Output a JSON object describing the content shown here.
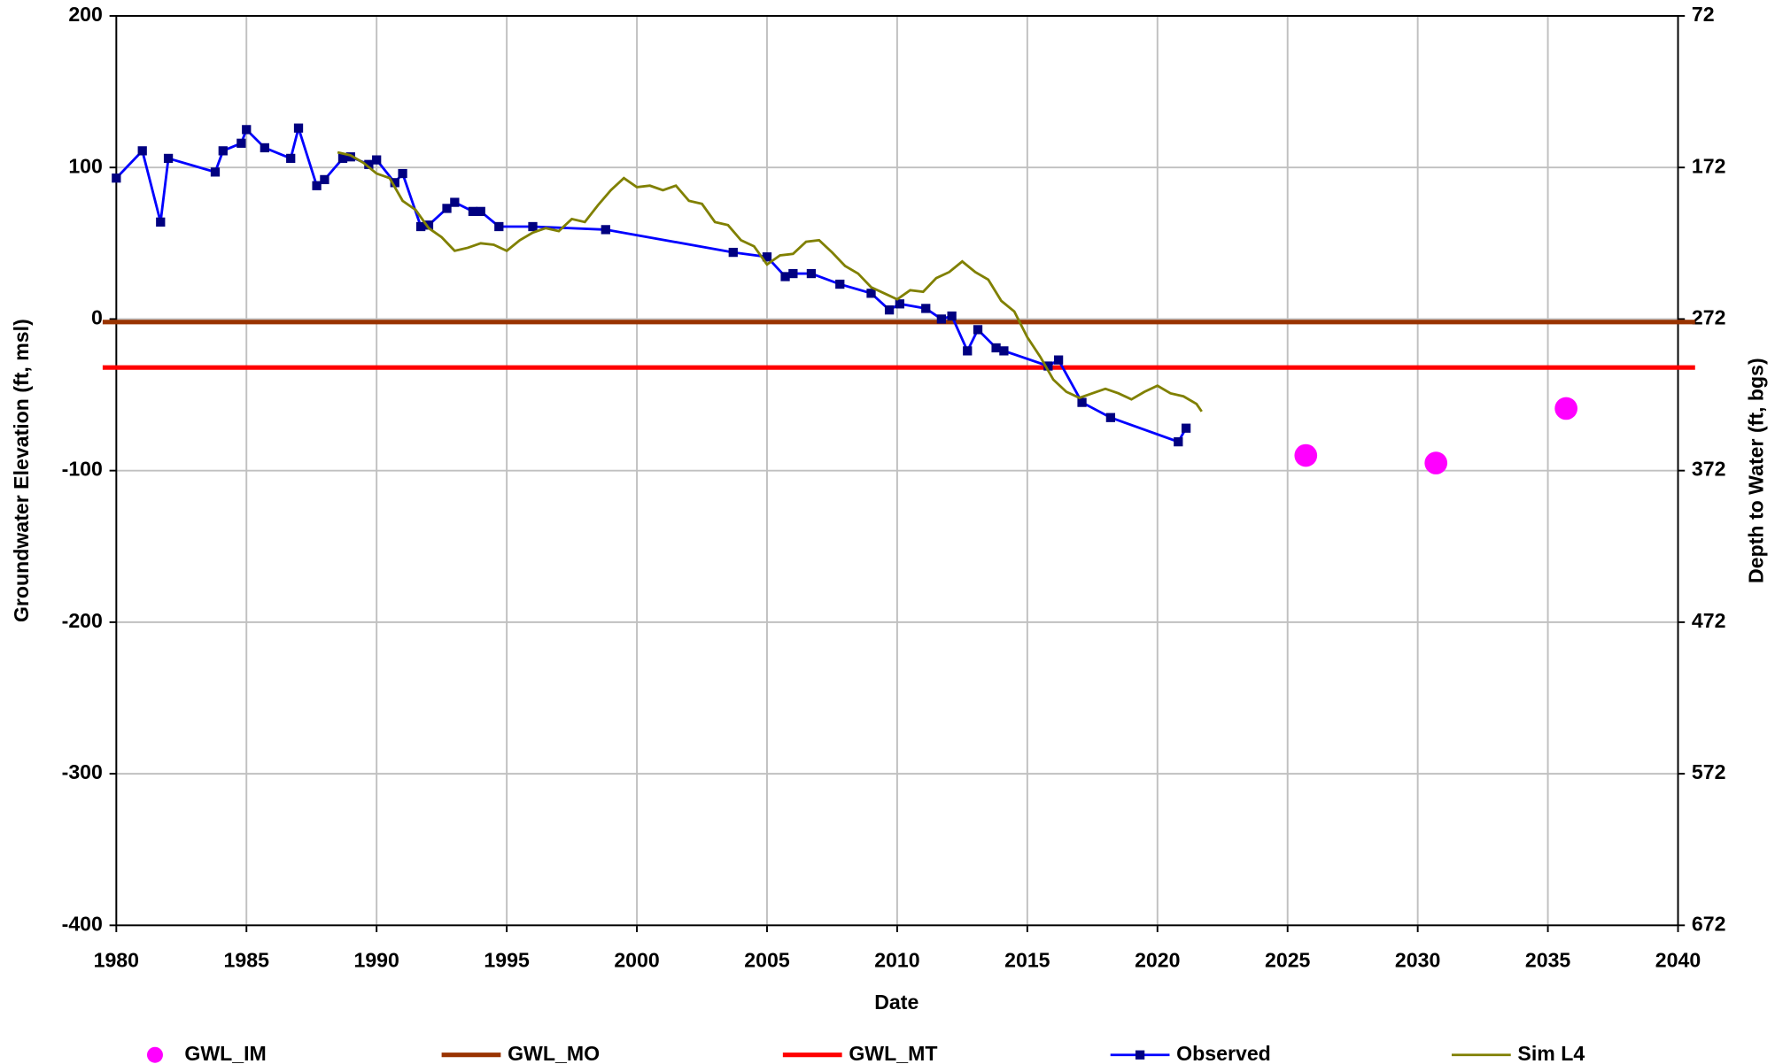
{
  "chart_data": {
    "type": "line",
    "xlabel": "Date",
    "ylabel": "Groundwater Elevation (ft, msl)",
    "y2label": "Depth to Water (ft, bgs)",
    "xlim": [
      1980,
      2040
    ],
    "xticks": [
      1980,
      1985,
      1990,
      1995,
      2000,
      2005,
      2010,
      2015,
      2020,
      2025,
      2030,
      2035,
      2040
    ],
    "ylim": [
      -400,
      200
    ],
    "yticks": [
      -400,
      -300,
      -200,
      -100,
      0,
      100,
      200
    ],
    "y2lim": [
      672,
      72
    ],
    "y2ticks": [
      672,
      572,
      472,
      372,
      272,
      172,
      72
    ],
    "grid": true,
    "legend": "bottom",
    "series": [
      {
        "name": "GWL_IM",
        "kind": "scatter",
        "marker": "circle",
        "color": "#ff00ff",
        "x": [
          2025.7,
          2030.7,
          2035.7
        ],
        "values": [
          -90,
          -95,
          -59
        ]
      },
      {
        "name": "GWL_MO",
        "kind": "line",
        "color": "#993300",
        "x": [
          1980,
          2040
        ],
        "values": [
          -2,
          -2
        ]
      },
      {
        "name": "GWL_MT",
        "kind": "line",
        "color": "#ff0000",
        "x": [
          1980,
          2040
        ],
        "values": [
          -32,
          -32
        ]
      },
      {
        "name": "Observed",
        "kind": "line",
        "marker": "square",
        "color": "#0000ff",
        "marker_color": "#000080",
        "x": [
          1980.0,
          1981.0,
          1981.7,
          1982.0,
          1983.8,
          1984.1,
          1984.8,
          1985.0,
          1985.7,
          1986.7,
          1987.0,
          1987.7,
          1988.0,
          1988.7,
          1989.0,
          1989.7,
          1990.0,
          1990.7,
          1991.0,
          1991.7,
          1992.0,
          1992.7,
          1993.0,
          1993.7,
          1994.0,
          1994.7,
          1996.0,
          1998.8,
          2003.7,
          2005.0,
          2005.7,
          2006.0,
          2006.7,
          2007.8,
          2009.0,
          2009.7,
          2010.1,
          2011.1,
          2011.7,
          2012.1,
          2012.7,
          2013.1,
          2013.8,
          2014.1,
          2015.8,
          2016.2,
          2017.1,
          2018.2,
          2020.8,
          2021.1
        ],
        "values": [
          93,
          111,
          64,
          106,
          97,
          111,
          116,
          125,
          113,
          106,
          126,
          88,
          92,
          106,
          107,
          102,
          105,
          90,
          96,
          61,
          62,
          73,
          77,
          71,
          71,
          61,
          61,
          59,
          44,
          41,
          28,
          30,
          30,
          23,
          17,
          6,
          10,
          7,
          0,
          2,
          -21,
          -7,
          -19,
          -21,
          -31,
          -27,
          -55,
          -65,
          -81,
          -72
        ]
      },
      {
        "name": "Sim L4",
        "kind": "line",
        "color": "#808000",
        "x": [
          1988.5,
          1989,
          1989.5,
          1990,
          1990.5,
          1991,
          1991.5,
          1992,
          1992.5,
          1993,
          1993.5,
          1994,
          1994.5,
          1995,
          1995.5,
          1996,
          1996.5,
          1997,
          1997.5,
          1998,
          1998.5,
          1999,
          1999.5,
          2000,
          2000.5,
          2001,
          2001.5,
          2002,
          2002.5,
          2003,
          2003.5,
          2004,
          2004.5,
          2005,
          2005.5,
          2006,
          2006.5,
          2007,
          2007.5,
          2008,
          2008.5,
          2009,
          2009.5,
          2010,
          2010.5,
          2011,
          2011.5,
          2012,
          2012.5,
          2013,
          2013.5,
          2014,
          2014.5,
          2015,
          2015.5,
          2016,
          2016.5,
          2017,
          2017.5,
          2018,
          2018.5,
          2019,
          2019.5,
          2020,
          2020.5,
          2021,
          2021.5,
          2021.7
        ],
        "values": [
          110,
          108,
          103,
          96,
          93,
          78,
          72,
          60,
          54,
          45,
          47,
          50,
          49,
          45,
          52,
          57,
          60,
          58,
          66,
          64,
          75,
          85,
          93,
          87,
          88,
          85,
          88,
          78,
          76,
          64,
          62,
          52,
          48,
          36,
          42,
          43,
          51,
          52,
          44,
          35,
          30,
          21,
          17,
          13,
          19,
          18,
          27,
          31,
          38,
          31,
          26,
          12,
          5,
          -12,
          -25,
          -40,
          -48,
          -52,
          -49,
          -46,
          -49,
          -53,
          -48,
          -44,
          -49,
          -51,
          -56,
          -61
        ]
      }
    ]
  }
}
